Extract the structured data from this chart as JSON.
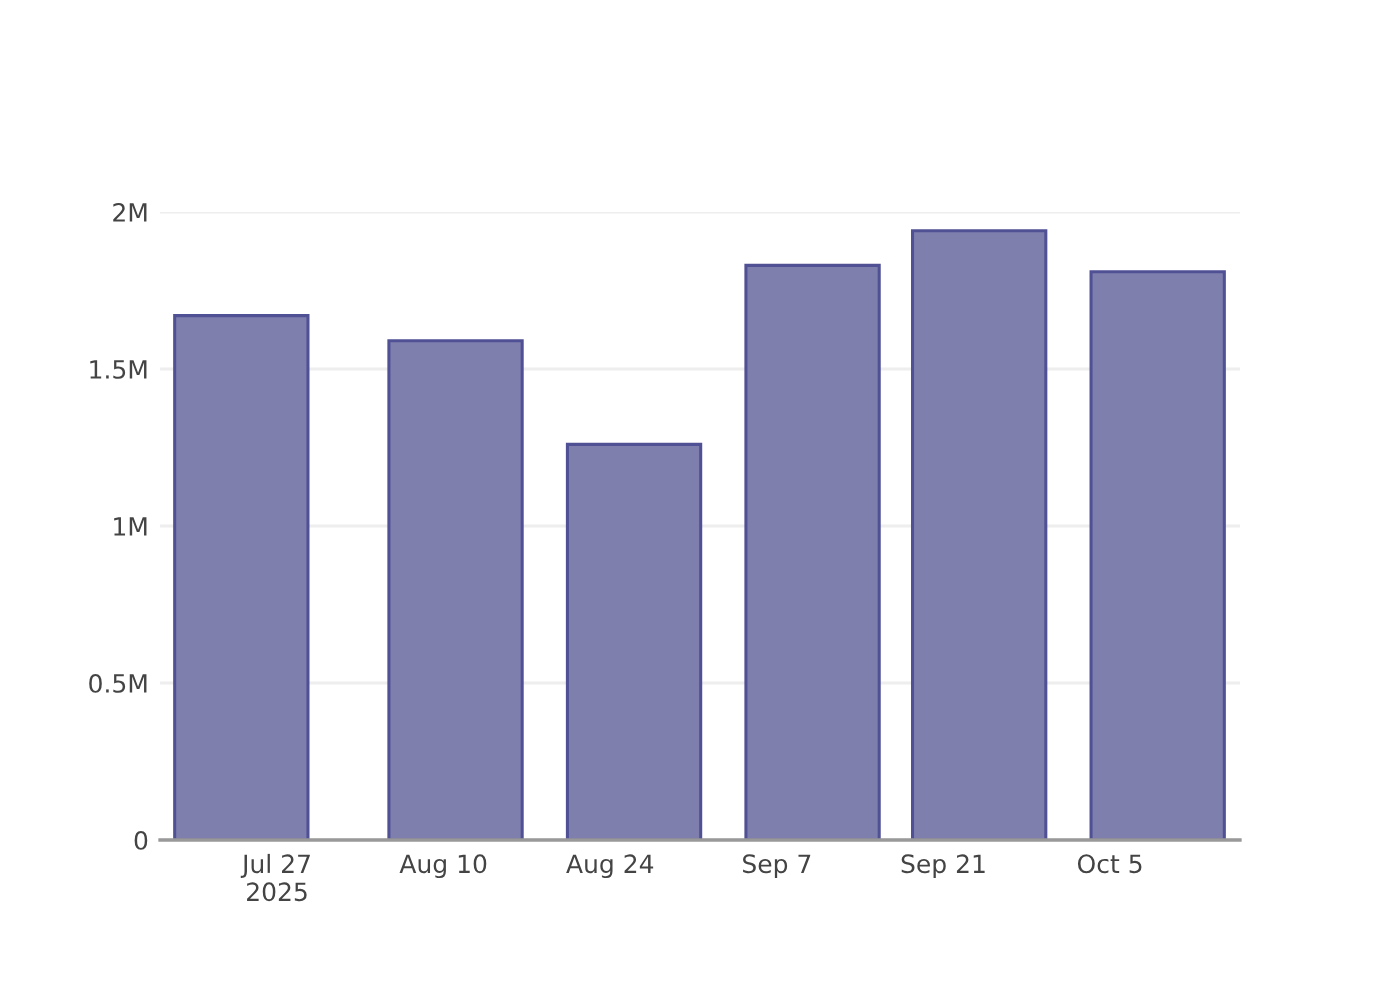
{
  "chart_data": {
    "type": "bar",
    "x": [
      "2025-07-24",
      "2025-08-11",
      "2025-08-26",
      "2025-09-10",
      "2025-09-24",
      "2025-10-09"
    ],
    "series": [
      {
        "color": "#7f7fae",
        "values": [
          1670000,
          1590000,
          1260000,
          1830000,
          1940000,
          1810000
        ]
      }
    ],
    "xlim": [
      "2025-07-17T04:00",
      "2025-10-15T22:00"
    ],
    "xticks": [
      {
        "value": "2025-07-27",
        "label": "Jul 27\n2025"
      },
      {
        "value": "2025-08-10",
        "label": "Aug 10"
      },
      {
        "value": "2025-08-24",
        "label": "Aug 24"
      },
      {
        "value": "2025-09-07",
        "label": "Sep 7"
      },
      {
        "value": "2025-09-21",
        "label": "Sep 21"
      },
      {
        "value": "2025-10-05",
        "label": "Oct 5"
      }
    ],
    "ylim": [
      0,
      2000000
    ],
    "yticks": [
      0,
      {
        "value": 500000,
        "label": "0.5M"
      },
      {
        "value": 1000000,
        "label": "1M"
      },
      {
        "value": 1500000,
        "label": "1.5M"
      },
      {
        "value": 2000000,
        "label": "2M"
      }
    ],
    "grid": "y"
  }
}
